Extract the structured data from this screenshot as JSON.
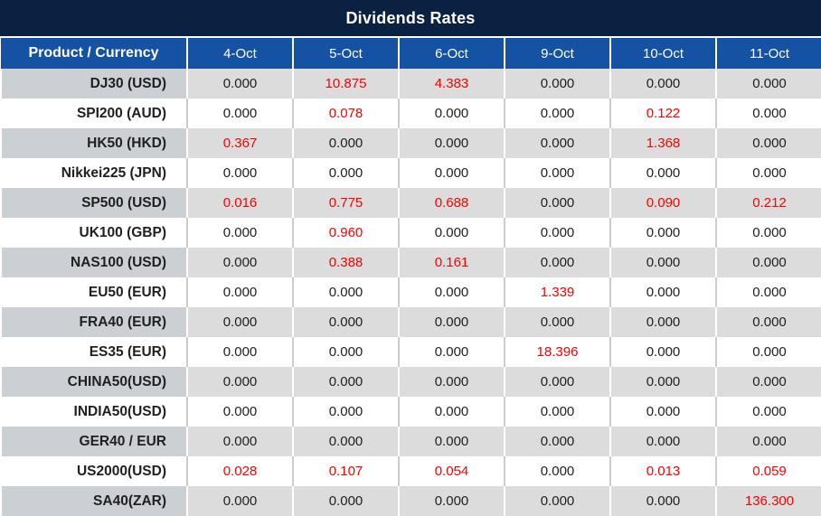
{
  "colors": {
    "title_bg": "#0a2142",
    "header_bg": "#1552a4",
    "header_text": "#ffffff",
    "row_gray": "#dcdcdc",
    "row_gray_label": "#ccd0d5",
    "row_white": "#ffffff",
    "text_dark": "#1f1f1f",
    "value_highlight": "#fe0000"
  },
  "chart_data": {
    "type": "table",
    "title": "Dividends Rates",
    "zero_value": "0.000",
    "highlight_rule": "non-zero dividend values rendered in red",
    "columns": [
      "Product / Currency",
      "4-Oct",
      "5-Oct",
      "6-Oct",
      "9-Oct",
      "10-Oct",
      "11-Oct"
    ],
    "rows": [
      [
        "DJ30 (USD)",
        "0.000",
        "10.875",
        "4.383",
        "0.000",
        "0.000",
        "0.000"
      ],
      [
        "SPI200 (AUD)",
        "0.000",
        "0.078",
        "0.000",
        "0.000",
        "0.122",
        "0.000"
      ],
      [
        "HK50 (HKD)",
        "0.367",
        "0.000",
        "0.000",
        "0.000",
        "1.368",
        "0.000"
      ],
      [
        "Nikkei225 (JPN)",
        "0.000",
        "0.000",
        "0.000",
        "0.000",
        "0.000",
        "0.000"
      ],
      [
        "SP500 (USD)",
        "0.016",
        "0.775",
        "0.688",
        "0.000",
        "0.090",
        "0.212"
      ],
      [
        "UK100 (GBP)",
        "0.000",
        "0.960",
        "0.000",
        "0.000",
        "0.000",
        "0.000"
      ],
      [
        "NAS100 (USD)",
        "0.000",
        "0.388",
        "0.161",
        "0.000",
        "0.000",
        "0.000"
      ],
      [
        "EU50 (EUR)",
        "0.000",
        "0.000",
        "0.000",
        "1.339",
        "0.000",
        "0.000"
      ],
      [
        "FRA40 (EUR)",
        "0.000",
        "0.000",
        "0.000",
        "0.000",
        "0.000",
        "0.000"
      ],
      [
        "ES35 (EUR)",
        "0.000",
        "0.000",
        "0.000",
        "18.396",
        "0.000",
        "0.000"
      ],
      [
        "CHINA50(USD)",
        "0.000",
        "0.000",
        "0.000",
        "0.000",
        "0.000",
        "0.000"
      ],
      [
        "INDIA50(USD)",
        "0.000",
        "0.000",
        "0.000",
        "0.000",
        "0.000",
        "0.000"
      ],
      [
        "GER40 / EUR",
        "0.000",
        "0.000",
        "0.000",
        "0.000",
        "0.000",
        "0.000"
      ],
      [
        "US2000(USD)",
        "0.028",
        "0.107",
        "0.054",
        "0.000",
        "0.013",
        "0.059"
      ],
      [
        "SA40(ZAR)",
        "0.000",
        "0.000",
        "0.000",
        "0.000",
        "0.000",
        "136.300"
      ]
    ]
  }
}
